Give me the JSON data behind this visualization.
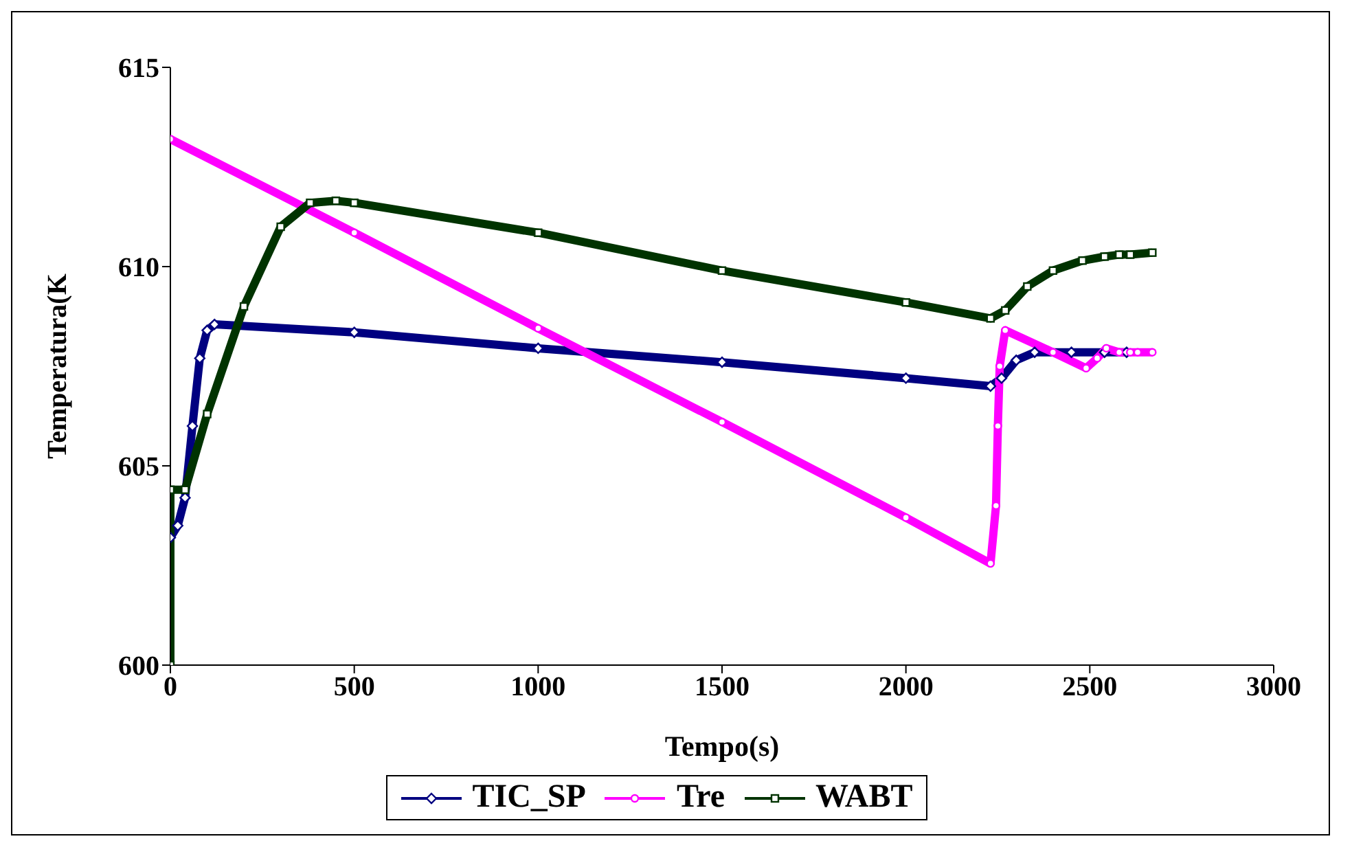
{
  "chart_data": {
    "type": "line",
    "xlabel": "Tempo(s)",
    "ylabel": "Temperatura(K",
    "xlim": [
      0,
      3000
    ],
    "xticks": [
      0,
      500,
      1000,
      1500,
      2000,
      2500,
      3000
    ],
    "ylim": [
      600,
      615
    ],
    "yticks": [
      600,
      605,
      610,
      615
    ],
    "grid": false,
    "legend": "bottom",
    "line_style": "solid",
    "series": [
      {
        "name": "TIC_SP",
        "color": "#000080",
        "marker": "diamond",
        "x": [
          0,
          20,
          40,
          60,
          80,
          100,
          120,
          500,
          1000,
          1500,
          2000,
          2230,
          2260,
          2300,
          2350,
          2450,
          2540,
          2600
        ],
        "values": [
          603.2,
          603.5,
          604.2,
          606,
          607.7,
          608.4,
          608.55,
          608.35,
          607.95,
          607.6,
          607.2,
          607.0,
          607.2,
          607.65,
          607.85,
          607.85,
          607.85,
          607.85
        ]
      },
      {
        "name": "Tre",
        "color": "#ff00ff",
        "marker": "circle",
        "x": [
          0,
          500,
          1000,
          1500,
          2000,
          2230,
          2245,
          2250,
          2255,
          2270,
          2400,
          2490,
          2520,
          2545,
          2580,
          2610,
          2630,
          2670
        ],
        "values": [
          613.2,
          610.85,
          608.45,
          606.1,
          603.7,
          602.55,
          604,
          606,
          607.5,
          608.4,
          607.85,
          607.45,
          607.7,
          607.95,
          607.85,
          607.85,
          607.85,
          607.85
        ]
      },
      {
        "name": "WABT",
        "color": "#003300",
        "marker": "square",
        "x": [
          0,
          0,
          40,
          100,
          200,
          300,
          380,
          450,
          500,
          1000,
          1500,
          2000,
          2230,
          2270,
          2330,
          2400,
          2480,
          2540,
          2580,
          2610,
          2670
        ],
        "values": [
          600,
          604.4,
          604.4,
          606.3,
          609,
          611,
          611.6,
          611.65,
          611.6,
          610.85,
          609.9,
          609.1,
          608.7,
          608.9,
          609.5,
          609.9,
          610.15,
          610.25,
          610.3,
          610.3,
          610.35
        ]
      }
    ]
  }
}
